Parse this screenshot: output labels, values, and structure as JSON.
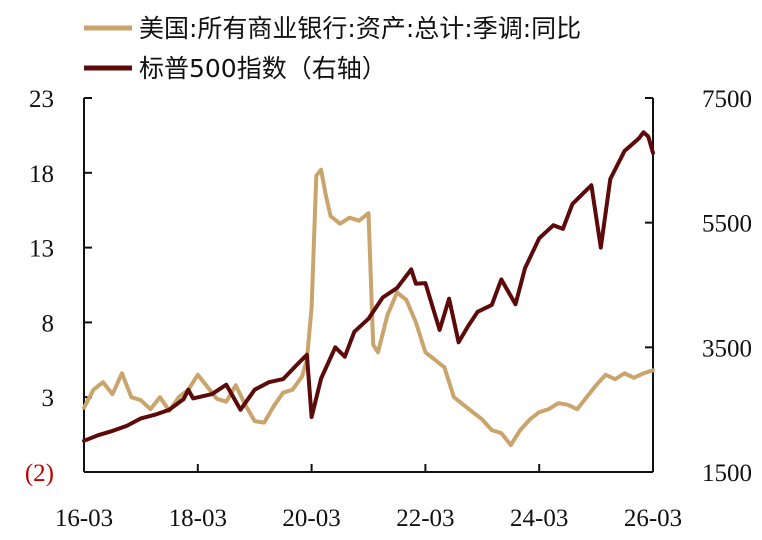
{
  "chart_data": {
    "type": "line",
    "title": "",
    "xlabel": "",
    "ylabel": "",
    "x_tick_labels": [
      "16-03",
      "18-03",
      "20-03",
      "22-03",
      "24-03",
      "26-03"
    ],
    "x_range": [
      "2016-03",
      "2026-03"
    ],
    "left_axis": {
      "ylim": [
        -2,
        23
      ],
      "ticks": [
        23,
        18,
        13,
        8,
        3,
        -2
      ],
      "tick_labels": [
        "23",
        "18",
        "13",
        "8",
        "3",
        "(2)"
      ],
      "negative_color": "#c00000"
    },
    "right_axis": {
      "ylim": [
        1500,
        7500
      ],
      "ticks": [
        7500,
        5500,
        3500,
        1500
      ],
      "tick_labels": [
        "7500",
        "5500",
        "3500",
        "1500"
      ]
    },
    "grid": false,
    "legend_position": "top",
    "series": [
      {
        "name": "美国:所有商业银行:资产:总计:季调:同比",
        "axis": "left",
        "color": "#c9a46c",
        "points": [
          [
            "2016-03",
            2.3
          ],
          [
            "2016-05",
            3.5
          ],
          [
            "2016-07",
            4.0
          ],
          [
            "2016-09",
            3.2
          ],
          [
            "2016-11",
            4.6
          ],
          [
            "2017-01",
            3.0
          ],
          [
            "2017-03",
            2.8
          ],
          [
            "2017-05",
            2.2
          ],
          [
            "2017-07",
            3.0
          ],
          [
            "2017-09",
            2.1
          ],
          [
            "2017-11",
            3.0
          ],
          [
            "2018-01",
            3.5
          ],
          [
            "2018-03",
            4.5
          ],
          [
            "2018-05",
            3.7
          ],
          [
            "2018-07",
            2.9
          ],
          [
            "2018-09",
            2.7
          ],
          [
            "2018-11",
            3.8
          ],
          [
            "2019-01",
            2.5
          ],
          [
            "2019-03",
            1.4
          ],
          [
            "2019-05",
            1.3
          ],
          [
            "2019-07",
            2.4
          ],
          [
            "2019-09",
            3.3
          ],
          [
            "2019-11",
            3.5
          ],
          [
            "2020-01",
            4.4
          ],
          [
            "2020-02",
            5.5
          ],
          [
            "2020-03",
            9.0
          ],
          [
            "2020-04",
            17.8
          ],
          [
            "2020-05",
            18.2
          ],
          [
            "2020-06",
            16.5
          ],
          [
            "2020-07",
            15.1
          ],
          [
            "2020-09",
            14.6
          ],
          [
            "2020-11",
            15.0
          ],
          [
            "2021-01",
            14.8
          ],
          [
            "2021-03",
            15.3
          ],
          [
            "2021-04",
            6.5
          ],
          [
            "2021-05",
            6.0
          ],
          [
            "2021-07",
            8.5
          ],
          [
            "2021-09",
            10.0
          ],
          [
            "2021-11",
            9.5
          ],
          [
            "2022-01",
            8.0
          ],
          [
            "2022-03",
            6.0
          ],
          [
            "2022-05",
            5.5
          ],
          [
            "2022-07",
            5.0
          ],
          [
            "2022-09",
            3.0
          ],
          [
            "2022-11",
            2.5
          ],
          [
            "2023-01",
            2.0
          ],
          [
            "2023-03",
            1.5
          ],
          [
            "2023-05",
            0.8
          ],
          [
            "2023-07",
            0.6
          ],
          [
            "2023-09",
            -0.2
          ],
          [
            "2023-11",
            0.8
          ],
          [
            "2024-01",
            1.5
          ],
          [
            "2024-03",
            2.0
          ],
          [
            "2024-05",
            2.2
          ],
          [
            "2024-07",
            2.6
          ],
          [
            "2024-09",
            2.5
          ],
          [
            "2024-11",
            2.2
          ],
          [
            "2025-01",
            3.0
          ],
          [
            "2025-03",
            3.8
          ],
          [
            "2025-05",
            4.5
          ],
          [
            "2025-07",
            4.2
          ],
          [
            "2025-09",
            4.6
          ],
          [
            "2025-11",
            4.3
          ],
          [
            "2026-01",
            4.6
          ],
          [
            "2026-03",
            4.8
          ]
        ]
      },
      {
        "name": "标普500指数（右轴）",
        "axis": "right",
        "color": "#5c0a0a",
        "points": [
          [
            "2016-03",
            2000
          ],
          [
            "2016-06",
            2090
          ],
          [
            "2016-09",
            2160
          ],
          [
            "2016-12",
            2240
          ],
          [
            "2017-03",
            2360
          ],
          [
            "2017-06",
            2420
          ],
          [
            "2017-09",
            2500
          ],
          [
            "2017-12",
            2670
          ],
          [
            "2018-01",
            2820
          ],
          [
            "2018-02",
            2680
          ],
          [
            "2018-06",
            2750
          ],
          [
            "2018-09",
            2900
          ],
          [
            "2018-12",
            2500
          ],
          [
            "2019-03",
            2820
          ],
          [
            "2019-06",
            2940
          ],
          [
            "2019-09",
            2990
          ],
          [
            "2019-12",
            3230
          ],
          [
            "2020-02",
            3380
          ],
          [
            "2020-03",
            2380
          ],
          [
            "2020-05",
            3000
          ],
          [
            "2020-08",
            3500
          ],
          [
            "2020-10",
            3350
          ],
          [
            "2020-12",
            3750
          ],
          [
            "2021-03",
            3960
          ],
          [
            "2021-06",
            4300
          ],
          [
            "2021-09",
            4450
          ],
          [
            "2021-12",
            4750
          ],
          [
            "2022-01",
            4520
          ],
          [
            "2022-03",
            4530
          ],
          [
            "2022-06",
            3780
          ],
          [
            "2022-08",
            4280
          ],
          [
            "2022-10",
            3580
          ],
          [
            "2022-12",
            3840
          ],
          [
            "2023-02",
            4070
          ],
          [
            "2023-05",
            4180
          ],
          [
            "2023-07",
            4590
          ],
          [
            "2023-10",
            4190
          ],
          [
            "2023-12",
            4770
          ],
          [
            "2024-03",
            5250
          ],
          [
            "2024-06",
            5460
          ],
          [
            "2024-08",
            5400
          ],
          [
            "2024-10",
            5800
          ],
          [
            "2024-12",
            5950
          ],
          [
            "2025-02",
            6100
          ],
          [
            "2025-04",
            5100
          ],
          [
            "2025-06",
            6200
          ],
          [
            "2025-09",
            6650
          ],
          [
            "2025-12",
            6850
          ],
          [
            "2026-01",
            6950
          ],
          [
            "2026-02",
            6880
          ],
          [
            "2026-03",
            6620
          ]
        ]
      }
    ]
  }
}
